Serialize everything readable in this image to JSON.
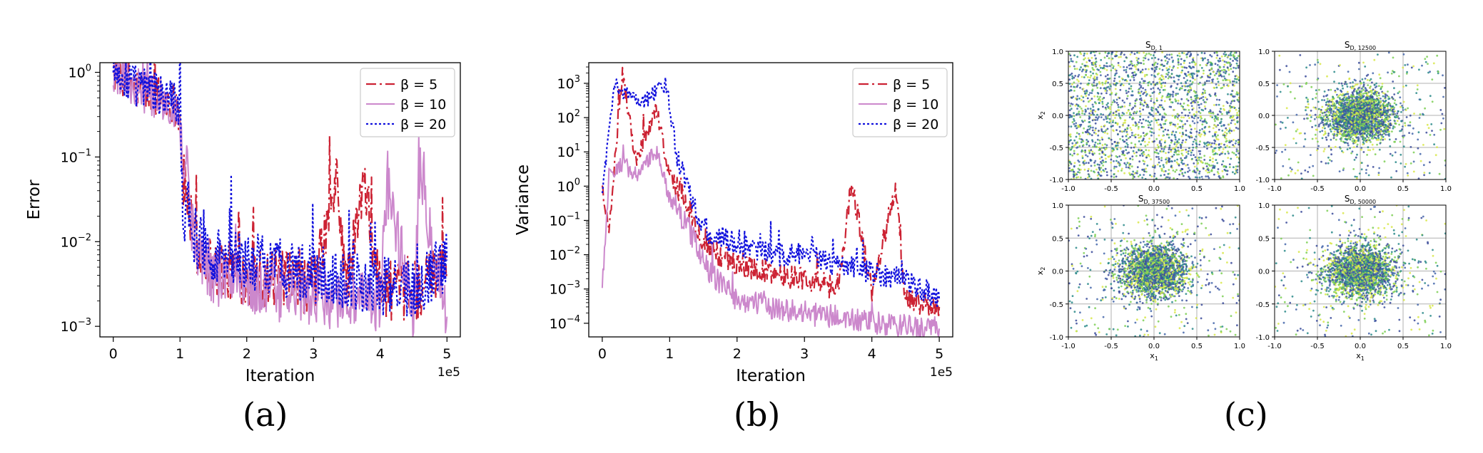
{
  "chart_data": [
    {
      "type": "line",
      "panel_label": "(a)",
      "xlabel": "Iteration",
      "ylabel": "Error",
      "x_offset_label": "1e5",
      "yscale": "log",
      "xlim": [
        -0.2,
        5.2
      ],
      "ylim": [
        0.00075,
        1.3
      ],
      "xticks": [
        0,
        1,
        2,
        3,
        4,
        5
      ],
      "yticks": [
        1,
        0.1,
        0.01,
        0.001
      ],
      "ytick_labels": [
        "10^0",
        "10^-1",
        "10^-2",
        "10^-3"
      ],
      "grid": false,
      "legend_position": "upper right",
      "series": [
        {
          "name": "β = 5",
          "color": "#cc2233",
          "style": "dashdot",
          "values": [
            [
              0,
              1.0
            ],
            [
              0.3,
              0.72
            ],
            [
              0.6,
              0.55
            ],
            [
              0.9,
              0.45
            ],
            [
              1.0,
              0.3
            ],
            [
              1.05,
              0.05
            ],
            [
              1.1,
              0.04
            ],
            [
              1.2,
              0.01
            ],
            [
              1.5,
              0.005
            ],
            [
              2.0,
              0.004
            ],
            [
              2.5,
              0.0035
            ],
            [
              3.0,
              0.003
            ],
            [
              3.35,
              0.05
            ],
            [
              3.5,
              0.0028
            ],
            [
              3.75,
              0.05
            ],
            [
              4.0,
              0.0027
            ],
            [
              4.5,
              0.0025
            ],
            [
              5.0,
              0.0045
            ]
          ]
        },
        {
          "name": "β = 10",
          "color": "#cc88cc",
          "style": "solid",
          "values": [
            [
              0,
              1.0
            ],
            [
              0.3,
              0.7
            ],
            [
              0.6,
              0.5
            ],
            [
              0.9,
              0.42
            ],
            [
              1.0,
              0.28
            ],
            [
              1.05,
              0.06
            ],
            [
              1.1,
              0.1
            ],
            [
              1.2,
              0.01
            ],
            [
              1.5,
              0.004
            ],
            [
              2.0,
              0.003
            ],
            [
              2.5,
              0.0025
            ],
            [
              3.0,
              0.0022
            ],
            [
              3.5,
              0.002
            ],
            [
              4.0,
              0.0018
            ],
            [
              4.1,
              0.05
            ],
            [
              4.5,
              0.0015
            ],
            [
              4.6,
              0.06
            ],
            [
              5.0,
              0.0013
            ]
          ]
        },
        {
          "name": "β = 20",
          "color": "#1111dd",
          "style": "dotted",
          "values": [
            [
              0,
              1.0
            ],
            [
              0.3,
              0.72
            ],
            [
              0.6,
              0.58
            ],
            [
              0.9,
              0.5
            ],
            [
              1.0,
              0.35
            ],
            [
              1.05,
              0.015
            ],
            [
              1.1,
              0.04
            ],
            [
              1.2,
              0.012
            ],
            [
              1.5,
              0.007
            ],
            [
              2.0,
              0.006
            ],
            [
              2.5,
              0.005
            ],
            [
              3.0,
              0.004
            ],
            [
              3.5,
              0.0035
            ],
            [
              4.0,
              0.003
            ],
            [
              4.5,
              0.0028
            ],
            [
              5.0,
              0.006
            ]
          ]
        }
      ]
    },
    {
      "type": "line",
      "panel_label": "(b)",
      "xlabel": "Iteration",
      "ylabel": "Variance",
      "x_offset_label": "1e5",
      "yscale": "log",
      "xlim": [
        -0.2,
        5.2
      ],
      "ylim": [
        4e-05,
        4000
      ],
      "xticks": [
        0,
        1,
        2,
        3,
        4,
        5
      ],
      "yticks": [
        1000,
        100,
        10,
        1,
        0.1,
        0.01,
        0.001,
        0.0001
      ],
      "ytick_labels": [
        "10^3",
        "10^2",
        "10^1",
        "10^0",
        "10^-1",
        "10^-2",
        "10^-3",
        "10^-4"
      ],
      "grid": false,
      "legend_position": "upper right",
      "series": [
        {
          "name": "β = 5",
          "color": "#cc2233",
          "style": "dashdot",
          "values": [
            [
              0,
              1.0
            ],
            [
              0.1,
              0.05
            ],
            [
              0.3,
              2500
            ],
            [
              0.5,
              5
            ],
            [
              0.8,
              200
            ],
            [
              1.0,
              2
            ],
            [
              1.2,
              0.5
            ],
            [
              1.5,
              0.02
            ],
            [
              2.0,
              0.005
            ],
            [
              2.5,
              0.003
            ],
            [
              3.0,
              0.002
            ],
            [
              3.5,
              0.001
            ],
            [
              3.7,
              1.3
            ],
            [
              4.0,
              0.0008
            ],
            [
              4.35,
              0.9
            ],
            [
              4.5,
              0.0005
            ],
            [
              5.0,
              0.0003
            ]
          ]
        },
        {
          "name": "β = 10",
          "color": "#cc88cc",
          "style": "solid",
          "values": [
            [
              0,
              0.001
            ],
            [
              0.1,
              2
            ],
            [
              0.3,
              5
            ],
            [
              0.5,
              2
            ],
            [
              0.8,
              10
            ],
            [
              1.0,
              0.5
            ],
            [
              1.3,
              0.05
            ],
            [
              1.6,
              0.003
            ],
            [
              2.0,
              0.0005
            ],
            [
              2.5,
              0.0003
            ],
            [
              3.0,
              0.0002
            ],
            [
              3.5,
              0.00015
            ],
            [
              4.0,
              0.0001
            ],
            [
              4.5,
              8e-05
            ],
            [
              5.0,
              7e-05
            ]
          ]
        },
        {
          "name": "β = 20",
          "color": "#1111dd",
          "style": "dotted",
          "values": [
            [
              0,
              0.5
            ],
            [
              0.1,
              50
            ],
            [
              0.2,
              1000
            ],
            [
              0.4,
              400
            ],
            [
              0.6,
              300
            ],
            [
              0.95,
              900
            ],
            [
              1.1,
              10
            ],
            [
              1.5,
              0.05
            ],
            [
              2.0,
              0.02
            ],
            [
              2.5,
              0.01
            ],
            [
              3.0,
              0.01
            ],
            [
              3.5,
              0.005
            ],
            [
              4.0,
              0.003
            ],
            [
              4.5,
              0.002
            ],
            [
              5.0,
              0.0005
            ]
          ]
        }
      ]
    },
    {
      "type": "scatter",
      "panel_label": "(c)",
      "subplots": [
        {
          "title": "S",
          "title_subscript": "D, 1",
          "ylabel": "x",
          "ylabel_subscript": "2",
          "xlabel": "",
          "xlabel_subscript": "",
          "distribution": "uniform",
          "spread": 1.0
        },
        {
          "title": "S",
          "title_subscript": "D, 12500",
          "ylabel": "",
          "ylabel_subscript": "",
          "xlabel": "",
          "xlabel_subscript": "",
          "distribution": "gaussian",
          "spread": 0.2
        },
        {
          "title": "S",
          "title_subscript": "D, 37500",
          "ylabel": "x",
          "ylabel_subscript": "2",
          "xlabel": "x",
          "xlabel_subscript": "1",
          "distribution": "gaussian",
          "spread": 0.2
        },
        {
          "title": "S",
          "title_subscript": "D, 50000",
          "ylabel": "",
          "ylabel_subscript": "",
          "xlabel": "x",
          "xlabel_subscript": "1",
          "distribution": "gaussian",
          "spread": 0.2
        }
      ],
      "xlim": [
        -1.0,
        1.0
      ],
      "ylim": [
        -1.0,
        1.0
      ],
      "xticks": [
        -1.0,
        -0.5,
        0.0,
        0.5,
        1.0
      ],
      "yticks": [
        1.0,
        0.5,
        0.0,
        -0.5,
        -1.0
      ],
      "grid": true,
      "point_colors": [
        "#3b4b9a",
        "#2a8a8a",
        "#7ccf55",
        "#d8e84a",
        "#4466aa"
      ]
    }
  ]
}
